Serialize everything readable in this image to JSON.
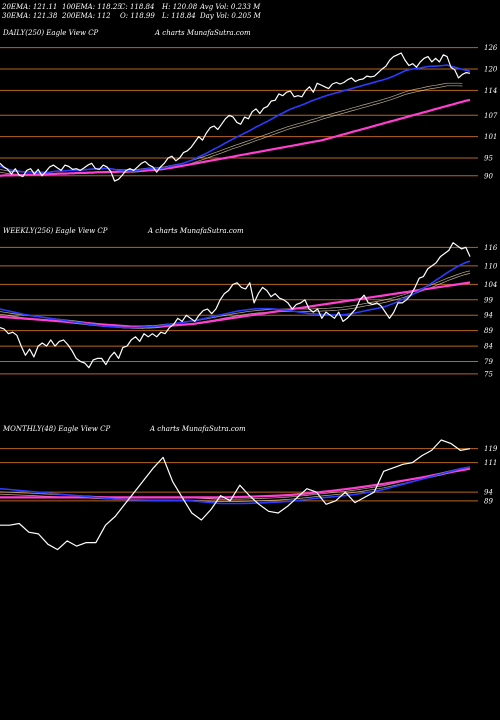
{
  "header": {
    "row1": [
      {
        "label": "20EMA: 121.11"
      },
      {
        "label": "100EMA: 118.25"
      },
      {
        "label": "C: 118.84"
      },
      {
        "label": "H: 120.08"
      },
      {
        "label": "Avg Vol: 0.233 M"
      }
    ],
    "row2": [
      {
        "label": "30EMA: 121.38"
      },
      {
        "label": "200EMA: 112"
      },
      {
        "label": "O: 118.99"
      },
      {
        "label": "L: 118.84"
      },
      {
        "label": "Day Vol: 0.205 M"
      }
    ]
  },
  "colors": {
    "background": "#000000",
    "price": "#ffffff",
    "level_line": "#b8651f",
    "ema_short": "#2a3cff",
    "ema_long": "#ff3fd0",
    "ema_mid": "#e8d8b0"
  },
  "chart_data": [
    {
      "type": "line",
      "panel": "daily",
      "title": "DAILY(250) Eagle  View  CP",
      "watermark": "A charts MunafaSutra.com",
      "y_ticks": [
        126,
        120,
        114,
        107,
        101,
        95,
        90
      ],
      "ylim": [
        86,
        129
      ],
      "series": [
        {
          "values": [
            93.5,
            92.5,
            91.8,
            90.5,
            92,
            90.2,
            89.8,
            91.5,
            92,
            90.5,
            91.8,
            90,
            91.2,
            92.5,
            93,
            92.2,
            91.5,
            93,
            92.6,
            91.8,
            92,
            91.5,
            92.2,
            93,
            93.5,
            92,
            91.8,
            93,
            92.5,
            91.2,
            88.5,
            89,
            90.2,
            91.5,
            92,
            91.5,
            92.5,
            93.5,
            94,
            93,
            92.5,
            91,
            92.5,
            93.5,
            95,
            95.5,
            94.2,
            95,
            96.5,
            97,
            98,
            99.5,
            101,
            100,
            102,
            103.5,
            104,
            103,
            104.5,
            106,
            107,
            106.5,
            105,
            104.5,
            106.5,
            106,
            108,
            108.8,
            107.5,
            109,
            109.5,
            111,
            111.2,
            113,
            112.5,
            113.5,
            113.8,
            112.2,
            112.5,
            112.2,
            114,
            115,
            113.5,
            116,
            115.5,
            115,
            114.5,
            115.8,
            116.2,
            115.8,
            116.2,
            117,
            117.5,
            116.5,
            117,
            117.2,
            118,
            117.8,
            118,
            119,
            120,
            120.8,
            122.5,
            123.5,
            124,
            124.5,
            122.5,
            121,
            121.5,
            120.5,
            122,
            123,
            123.5,
            122,
            123,
            122,
            124,
            123.5,
            120.5,
            119.8,
            117.5,
            118.5,
            119,
            118.8
          ]
        },
        {
          "values": [
            92.8,
            92.3,
            91.9,
            91.6,
            91.5,
            91.3,
            91.1,
            91.1,
            91.1,
            91,
            91,
            90.9,
            90.9,
            91,
            91.2,
            91.3,
            91.3,
            91.4,
            91.5,
            91.5,
            91.6,
            91.6,
            91.7,
            91.8,
            91.9,
            92,
            92,
            92.1,
            92.1,
            92,
            91.8,
            91.6,
            91.5,
            91.4,
            91.4,
            91.4,
            91.5,
            91.7,
            91.9,
            92,
            92.1,
            92,
            92.1,
            92.2,
            92.5,
            92.8,
            93,
            93.2,
            93.5,
            93.9,
            94.3,
            94.8,
            95.3,
            95.8,
            96.3,
            96.9,
            97.5,
            98,
            98.6,
            99.2,
            99.8,
            100.4,
            100.9,
            101.4,
            102,
            102.5,
            103.1,
            103.7,
            104.2,
            104.8,
            105.3,
            105.9,
            106.5,
            107.1,
            107.6,
            108.2,
            108.7,
            109.1,
            109.5,
            109.9,
            110.3,
            110.8,
            111.2,
            111.6,
            112,
            112.4,
            112.7,
            113,
            113.3,
            113.6,
            113.9,
            114.2,
            114.5,
            114.8,
            115.1,
            115.4,
            115.7,
            116,
            116.3,
            116.6,
            116.9,
            117.2,
            117.6,
            118,
            118.5,
            119,
            119.5,
            119.8,
            120,
            120.2,
            120.3,
            120.5,
            120.7,
            120.8,
            120.8,
            120.9,
            121,
            121.1,
            120.8,
            120.5,
            120.2,
            119.9,
            119.6,
            119.4
          ]
        },
        {
          "values": [
            90,
            90.1,
            90.1,
            90.1,
            90.2,
            90.2,
            90.2,
            90.3,
            90.3,
            90.3,
            90.4,
            90.4,
            90.4,
            90.5,
            90.5,
            90.6,
            90.6,
            90.6,
            90.7,
            90.7,
            90.8,
            90.8,
            90.8,
            90.9,
            90.9,
            91,
            91,
            91,
            91.1,
            91.1,
            91.1,
            91.2,
            91.2,
            91.2,
            91.3,
            91.3,
            91.4,
            91.4,
            91.5,
            91.6,
            91.7,
            91.8,
            91.9,
            92.1,
            92.2,
            92.4,
            92.6,
            92.8,
            93,
            93.2,
            93.4,
            93.6,
            93.8,
            94,
            94.2,
            94.4,
            94.6,
            94.8,
            95,
            95.2,
            95.4,
            95.6,
            95.8,
            96,
            96.2,
            96.4,
            96.6,
            96.8,
            97,
            97.2,
            97.4,
            97.6,
            97.8,
            98,
            98.2,
            98.4,
            98.6,
            98.8,
            99,
            99.2,
            99.4,
            99.6,
            99.8,
            100,
            100.3,
            100.6,
            100.9,
            101.2,
            101.5,
            101.8,
            102.1,
            102.4,
            102.7,
            103,
            103.3,
            103.6,
            103.9,
            104.2,
            104.5,
            104.8,
            105.1,
            105.4,
            105.7,
            106,
            106.3,
            106.6,
            106.9,
            107.2,
            107.5,
            107.8,
            108.1,
            108.4,
            108.7,
            109,
            109.3,
            109.6,
            109.9,
            110.2,
            110.5,
            110.8,
            111.1,
            111.3
          ]
        }
      ]
    },
    {
      "type": "line",
      "panel": "weekly",
      "title": "WEEKLY(256) Eagle  View  CP",
      "watermark": "A charts MunafaSutra.com",
      "y_ticks": [
        116,
        110,
        104,
        99,
        94,
        89,
        84,
        79,
        75
      ],
      "ylim": [
        73,
        120
      ],
      "series": [
        {
          "values": [
            90,
            89.5,
            88,
            88.5,
            87.5,
            84,
            81,
            83,
            80.5,
            84,
            85,
            84,
            86,
            84,
            85.5,
            86,
            84.5,
            82.5,
            80,
            79,
            78.5,
            77,
            79.5,
            80,
            80,
            78,
            80.5,
            82,
            80,
            83.5,
            84,
            86,
            87,
            85.5,
            88,
            87,
            88,
            87,
            88.5,
            88,
            90,
            91,
            93,
            92,
            94,
            93,
            92,
            94,
            95.5,
            96,
            94.5,
            96,
            99,
            101,
            102,
            104,
            104.5,
            103,
            102.5,
            104.5,
            98,
            101,
            103,
            102,
            100,
            101,
            99.5,
            99,
            98,
            96,
            97.5,
            98,
            99,
            96,
            95,
            96,
            93,
            95,
            94,
            93,
            95,
            92,
            93,
            94.5,
            96,
            99,
            100.5,
            98,
            97.5,
            98,
            97,
            95,
            93,
            95,
            98,
            98,
            99,
            100.5,
            103,
            106,
            106.5,
            109,
            110,
            111,
            113,
            114,
            115,
            117.5,
            116.5,
            115.5,
            116,
            113
          ]
        },
        {
          "values": [
            96,
            95.7,
            95.4,
            95.1,
            94.8,
            94.5,
            94.2,
            94,
            93.8,
            93.6,
            93.4,
            93.2,
            93,
            92.8,
            92.6,
            92.4,
            92.2,
            92,
            91.8,
            91.6,
            91.4,
            91.2,
            91,
            90.8,
            90.6,
            90.5,
            90.4,
            90.3,
            90.2,
            90.1,
            90,
            90,
            90,
            90,
            90.1,
            90.2,
            90.3,
            90.4,
            90.5,
            90.7,
            90.9,
            91.1,
            91.3,
            91.5,
            91.7,
            91.9,
            92.1,
            92.3,
            92.6,
            92.9,
            93.2,
            93.5,
            93.8,
            94.1,
            94.4,
            94.7,
            95,
            95.3,
            95.5,
            95.7,
            95.9,
            96,
            96.1,
            96.1,
            96.1,
            96.1,
            96,
            95.9,
            95.8,
            95.6,
            95.4,
            95.2,
            95,
            94.8,
            94.6,
            94.5,
            94.4,
            94.3,
            94.2,
            94.1,
            94.1,
            94.1,
            94.1,
            94.2,
            94.4,
            94.6,
            94.9,
            95.2,
            95.5,
            95.8,
            96,
            96.3,
            96.6,
            97,
            97.5,
            98,
            98.6,
            99.2,
            99.9,
            100.6,
            101.3,
            102.1,
            102.9,
            103.7,
            104.6,
            105.5,
            106.4,
            107.3,
            108.2,
            109,
            109.8,
            110.5,
            111.1,
            111.5
          ]
        },
        {
          "values": [
            93.5,
            93.4,
            93.3,
            93.2,
            93.1,
            93,
            92.9,
            92.8,
            92.7,
            92.6,
            92.5,
            92.4,
            92.3,
            92.2,
            92.1,
            92,
            91.9,
            91.8,
            91.7,
            91.6,
            91.5,
            91.4,
            91.3,
            91.2,
            91.1,
            91,
            90.9,
            90.8,
            90.7,
            90.6,
            90.5,
            90.4,
            90.3,
            90.2,
            90.2,
            90.2,
            90.2,
            90.2,
            90.3,
            90.4,
            90.5,
            90.6,
            90.7,
            90.8,
            90.9,
            91,
            91.1,
            91.2,
            91.4,
            91.6,
            91.8,
            92,
            92.2,
            92.4,
            92.6,
            92.8,
            93,
            93.2,
            93.4,
            93.6,
            93.8,
            94,
            94.2,
            94.4,
            94.6,
            94.8,
            95,
            95.2,
            95.4,
            95.6,
            95.8,
            96,
            96.2,
            96.4,
            96.6,
            96.8,
            97,
            97.2,
            97.4,
            97.6,
            97.8,
            98,
            98.2,
            98.4,
            98.6,
            98.8,
            99,
            99.2,
            99.4,
            99.6,
            99.8,
            100,
            100.2,
            100.4,
            100.6,
            100.8,
            101,
            101.2,
            101.4,
            101.6,
            101.8,
            102,
            102.2,
            102.4,
            102.6,
            102.8,
            103,
            103.2,
            103.4,
            103.6,
            103.8,
            104,
            104.2,
            104.4,
            104.6
          ]
        }
      ]
    },
    {
      "type": "line",
      "panel": "monthly",
      "title": "MONTHLY(48) Eagle  View  CP",
      "watermark": "A charts MunafaSutra.com",
      "y_ticks": [
        119,
        111,
        94,
        89
      ],
      "ylim": [
        55,
        128
      ],
      "series": [
        {
          "values": [
            75,
            75,
            76,
            71,
            70,
            64,
            61,
            66,
            63,
            65,
            65,
            75,
            80,
            87,
            94,
            101,
            108,
            114,
            100,
            91,
            82,
            78,
            84,
            92,
            89,
            98,
            92,
            87,
            83,
            82,
            86,
            91,
            96,
            94,
            87,
            89,
            94,
            88,
            91,
            94,
            106,
            108,
            110,
            111,
            115,
            118,
            124,
            122,
            118,
            119
          ]
        },
        {
          "values": [
            96,
            95.5,
            95,
            94.5,
            94,
            93.5,
            93,
            92.5,
            92,
            91.5,
            91,
            90.5,
            90,
            89.8,
            89.6,
            89.5,
            89.4,
            89.4,
            89.4,
            89.2,
            89,
            88.5,
            88,
            87.5,
            87.5,
            87.5,
            87.6,
            87.8,
            88,
            88.3,
            88.7,
            89.2,
            89.8,
            90.5,
            91,
            91.5,
            92,
            92.7,
            93.5,
            94.5,
            95.5,
            97,
            98.5,
            100,
            101.5,
            103,
            104.5,
            106,
            107.5,
            108.5
          ]
        },
        {
          "values": [
            91,
            91,
            91,
            91,
            91,
            91,
            91,
            91,
            91,
            91,
            91,
            91,
            91,
            91,
            91,
            91,
            91,
            91,
            91,
            91,
            91,
            91,
            91,
            91,
            91.1,
            91.2,
            91.4,
            91.6,
            91.8,
            92,
            92.3,
            92.7,
            93.2,
            93.8,
            94.4,
            95,
            95.7,
            96.4,
            97.2,
            98,
            98.8,
            99.7,
            100.6,
            101.5,
            102.5,
            103.5,
            104.5,
            105.5,
            106.5,
            107.5
          ]
        }
      ]
    }
  ]
}
